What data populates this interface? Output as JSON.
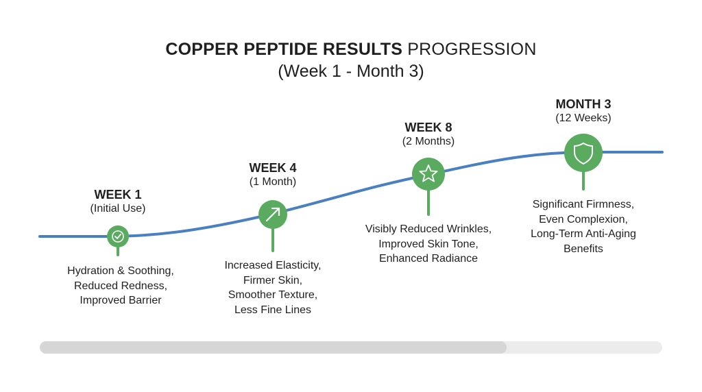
{
  "title": {
    "bold": "COPPER PEPTIDE RESULTS",
    "regular": "PROGRESSION",
    "subtitle": "(Week 1 - Month 3)"
  },
  "colors": {
    "curve": "#4a7fc0",
    "node": "#5aaa5f",
    "text": "#1f1f1f",
    "progress_track": "#ececec",
    "progress_fill": "#d6d6d6"
  },
  "milestones": [
    {
      "heading": "WEEK 1",
      "sub": "(Initial Use)",
      "icon": "check-circle-icon",
      "benefits": [
        "Hydration & Soothing,",
        "Reduced Redness,",
        "Improved Barrier"
      ]
    },
    {
      "heading": "WEEK 4",
      "sub": "(1 Month)",
      "icon": "arrow-up-right-icon",
      "benefits": [
        "Increased Elasticity,",
        "Firmer Skin,",
        "Smoother Texture,",
        "Less Fine Lines"
      ]
    },
    {
      "heading": "WEEK 8",
      "sub": "(2 Months)",
      "icon": "star-icon",
      "benefits": [
        "Visibly Reduced Wrinkles,",
        "Improved Skin Tone,",
        "Enhanced Radiance"
      ]
    },
    {
      "heading": "MONTH 3",
      "sub": "(12 Weeks)",
      "icon": "shield-icon",
      "benefits": [
        "Significant Firmness,",
        "Even Complexion,",
        "Long-Term Anti-Aging",
        "Benefits"
      ]
    }
  ],
  "progress": {
    "percent": 75
  }
}
